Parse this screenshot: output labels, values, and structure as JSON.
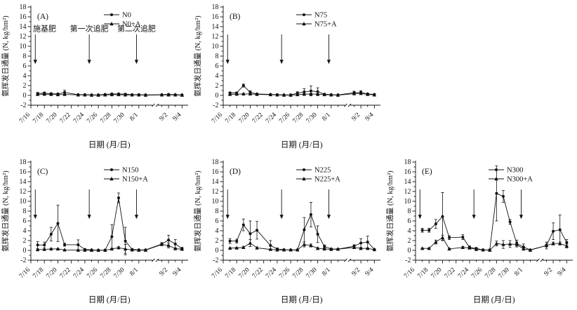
{
  "figure_title": "",
  "chart_data": {
    "type": "line",
    "title": "",
    "xlabel": "日期 (月/日)",
    "ylabel": "氨挥发日通量 (N, kg/hm²)",
    "ylim": [
      -2,
      18
    ],
    "ytick_step": 2,
    "grid": false,
    "legend_position": "top-right",
    "x_major_tick_labels": [
      "7/16",
      "7/18",
      "7/20",
      "7/22",
      "7/24",
      "7/26",
      "7/28",
      "7/30",
      "8/1",
      "9/2",
      "9/4"
    ],
    "x_minor_tick_dates": [
      "7/17",
      "7/19",
      "7/21",
      "7/23",
      "7/25",
      "7/27",
      "7/29",
      "7/31",
      "8/2",
      "9/1",
      "9/3"
    ],
    "x_axis_break_between": [
      "8/2",
      "9/1"
    ],
    "x_dates": [
      "7/17",
      "7/18",
      "7/19",
      "7/20",
      "7/21",
      "7/23",
      "7/24",
      "7/25",
      "7/26",
      "7/27",
      "7/28",
      "7/29",
      "7/30",
      "7/31",
      "8/1",
      "8/2",
      "9/1",
      "9/2",
      "9/3",
      "9/4"
    ],
    "fertilization_annotations": {
      "shown_in_panel": "(A)",
      "labels": [
        "施基肥",
        "第一次追肥",
        "第二次追肥"
      ],
      "arrow_dates": [
        "7/17",
        "7/25",
        "8/1"
      ],
      "arrow_y_from": 12.4,
      "arrow_y_to": 6.4,
      "text_y": 13.1
    },
    "panels": [
      {
        "label": "(A)",
        "series": [
          {
            "name": "N0",
            "marker": "circle",
            "values": [
              0.4,
              0.45,
              0.35,
              0.3,
              0.6,
              0.15,
              0.15,
              0.1,
              0.1,
              0.2,
              0.3,
              0.3,
              0.25,
              0.15,
              0.15,
              0.1,
              0.15,
              0.2,
              0.15,
              0.1
            ],
            "errors": [
              0.2,
              0.25,
              0.15,
              0.1,
              0.45,
              0.05,
              0.05,
              0,
              0,
              0.05,
              0.1,
              0.1,
              0.1,
              0.05,
              0.05,
              0,
              0.05,
              0.1,
              0.05,
              0.05
            ]
          },
          {
            "name": "N0+A",
            "marker": "triangle",
            "values": [
              0.2,
              0.25,
              0.2,
              0.15,
              0.2,
              0.1,
              0.1,
              0.05,
              0.05,
              0.1,
              0.15,
              0.15,
              0.1,
              0.1,
              0.1,
              0.05,
              0.1,
              0.1,
              0.1,
              0.05
            ],
            "errors": [
              0.1,
              0.1,
              0.1,
              0.05,
              0.1,
              0,
              0,
              0,
              0,
              0,
              0.05,
              0.05,
              0,
              0,
              0,
              0,
              0,
              0.05,
              0,
              0
            ]
          }
        ]
      },
      {
        "label": "(B)",
        "series": [
          {
            "name": "N75",
            "marker": "circle",
            "values": [
              0.5,
              0.5,
              2.0,
              0.6,
              0.3,
              0.2,
              0.15,
              0.1,
              0.1,
              0.45,
              0.7,
              0.9,
              0.75,
              0.25,
              0.15,
              0.1,
              0.55,
              0.6,
              0.3,
              0.2
            ],
            "errors": [
              0.2,
              0.2,
              0.3,
              0.35,
              0.1,
              0.05,
              0.05,
              0,
              0,
              0.3,
              0.65,
              1.0,
              0.8,
              0.1,
              0.05,
              0,
              0.3,
              0.35,
              0.1,
              0.05
            ]
          },
          {
            "name": "N75+A",
            "marker": "triangle",
            "values": [
              0.2,
              0.25,
              0.3,
              0.3,
              0.2,
              0.15,
              0.1,
              0.05,
              0.05,
              0.15,
              0.25,
              0.3,
              0.25,
              0.15,
              0.1,
              0.05,
              0.35,
              0.4,
              0.2,
              0.1
            ],
            "errors": [
              0.05,
              0.05,
              0.1,
              0.1,
              0.05,
              0,
              0,
              0,
              0,
              0.05,
              0.1,
              0.1,
              0.1,
              0.05,
              0,
              0,
              0.1,
              0.15,
              0.05,
              0
            ]
          }
        ]
      },
      {
        "label": "(C)",
        "series": [
          {
            "name": "N150",
            "marker": "circle",
            "values": [
              1.1,
              1.1,
              3.3,
              5.5,
              1.15,
              1.15,
              0.2,
              0.1,
              0.05,
              0.05,
              2.8,
              10.7,
              1.9,
              0.2,
              0.1,
              0.1,
              1.3,
              2.1,
              1.3,
              0.4
            ],
            "errors": [
              0.7,
              0.6,
              1.4,
              3.7,
              0.3,
              1.0,
              0.1,
              0,
              0,
              0,
              2.4,
              1.0,
              2.8,
              0.1,
              0,
              0,
              0.3,
              1.0,
              0.9,
              0.2
            ]
          },
          {
            "name": "N150+A",
            "marker": "triangle",
            "values": [
              0.15,
              0.2,
              0.3,
              0.3,
              0.1,
              0.05,
              0.05,
              0.02,
              0.02,
              0.02,
              0.3,
              0.55,
              0.3,
              0.1,
              0.05,
              0.05,
              1.2,
              1.0,
              0.35,
              0.25
            ],
            "errors": [
              0.05,
              0.05,
              0.1,
              0.1,
              0.05,
              0,
              0,
              0,
              0,
              0,
              0.15,
              0.2,
              0.9,
              0.05,
              0,
              0,
              0.2,
              0.5,
              0.15,
              0.1
            ]
          }
        ]
      },
      {
        "label": "(D)",
        "series": [
          {
            "name": "N225",
            "marker": "circle",
            "values": [
              1.9,
              1.9,
              5.2,
              3.4,
              4.1,
              1.0,
              0.3,
              0.15,
              0.1,
              0.1,
              4.2,
              7.3,
              3.3,
              0.8,
              0.3,
              0.25,
              0.85,
              1.5,
              1.7,
              0.2
            ],
            "errors": [
              0.5,
              0.4,
              1.2,
              2.6,
              1.8,
              1.0,
              0.15,
              0,
              0,
              0,
              2.5,
              2.5,
              1.7,
              0.3,
              0.1,
              0.1,
              0.3,
              0.9,
              1.2,
              0.1
            ]
          },
          {
            "name": "N225+A",
            "marker": "triangle",
            "values": [
              0.45,
              0.5,
              0.6,
              1.5,
              0.5,
              0.2,
              0.1,
              0.1,
              0.1,
              0.1,
              1.2,
              1.0,
              0.4,
              0.3,
              0.2,
              0.25,
              0.6,
              0.4,
              0.4,
              0.15
            ],
            "errors": [
              0.1,
              0.1,
              0.2,
              0.7,
              0.2,
              0.1,
              0,
              0,
              0,
              0,
              0.5,
              0.3,
              0.2,
              0.1,
              0.1,
              0.1,
              0.2,
              0.1,
              0.1,
              0.05
            ]
          }
        ]
      },
      {
        "label": "(E)",
        "series": [
          {
            "name": "N300",
            "marker": "circle",
            "values": [
              4.1,
              4.1,
              5.4,
              6.9,
              2.6,
              2.7,
              0.6,
              0.4,
              0.1,
              0.1,
              11.6,
              11.0,
              5.8,
              1.4,
              0.7,
              0.1,
              1.0,
              3.9,
              4.2,
              1.6
            ],
            "errors": [
              0.4,
              0.4,
              0.9,
              4.9,
              0.4,
              0.5,
              0.3,
              0.2,
              0,
              0,
              5.6,
              1.2,
              0.5,
              0.7,
              0.6,
              0,
              0.7,
              1.7,
              3.0,
              0.6
            ]
          },
          {
            "name": "N300+A",
            "marker": "triangle",
            "values": [
              0.4,
              0.4,
              1.7,
              2.6,
              0.3,
              0.6,
              0.5,
              0.2,
              0.1,
              0.05,
              1.4,
              1.2,
              1.3,
              1.2,
              0.3,
              0.05,
              1.0,
              1.4,
              1.4,
              0.9
            ],
            "errors": [
              0.1,
              0.1,
              0.4,
              0.5,
              0.1,
              0.2,
              0.2,
              0.1,
              0,
              0,
              0.5,
              0.8,
              0.7,
              0.5,
              0.2,
              0,
              0.3,
              0.3,
              0.3,
              0.4
            ]
          }
        ]
      }
    ]
  }
}
